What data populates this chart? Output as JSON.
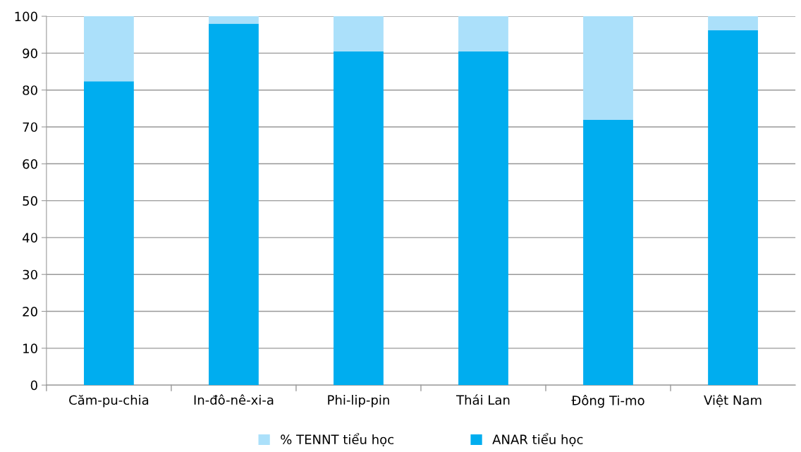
{
  "chart_data": {
    "type": "bar",
    "stacked": true,
    "categories": [
      "Căm-pu-chia",
      "In-đô-nê-xi-a",
      "Phi-lip-pin",
      "Thái Lan",
      "Đông Ti-mo",
      "Việt Nam"
    ],
    "series": [
      {
        "name": "ANAR tiểu học",
        "color": "#00adef",
        "values": [
          82.4,
          98.0,
          90.5,
          90.5,
          71.9,
          96.2
        ]
      },
      {
        "name": "% TENNT tiểu học",
        "color": "#abe0fa",
        "values": [
          17.6,
          2.0,
          9.5,
          9.5,
          28.1,
          3.8
        ]
      }
    ],
    "ylim": [
      0,
      100
    ],
    "yticks": [
      0,
      10,
      20,
      30,
      40,
      50,
      60,
      70,
      80,
      90,
      100
    ],
    "grid": "y",
    "legend": "bottom"
  }
}
